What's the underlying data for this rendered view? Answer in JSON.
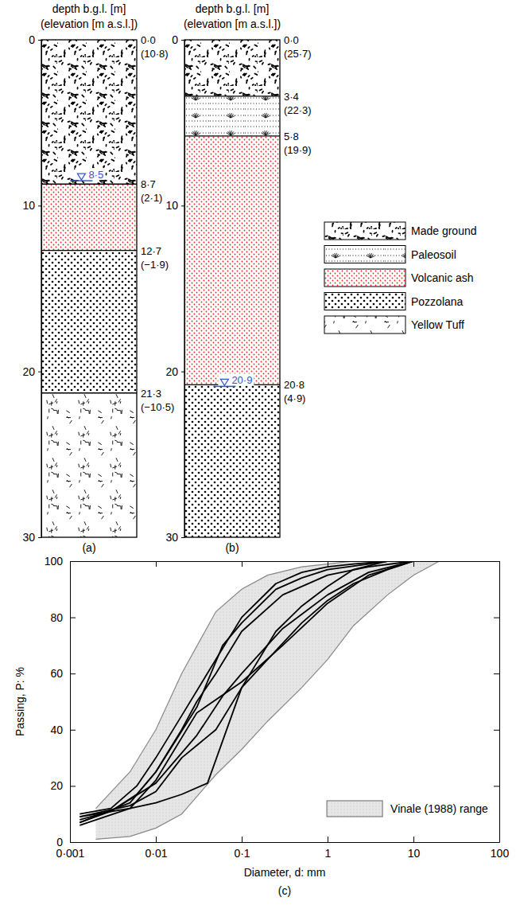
{
  "logs": [
    {
      "label": "(a)",
      "header": [
        "depth b.g.l. [m]",
        "(elevation [m a.s.l.])"
      ],
      "depth_range": [
        0,
        30
      ],
      "depth_ticks": [
        0,
        10,
        20,
        30
      ],
      "layers": [
        {
          "material": "Made ground",
          "top": 0,
          "top_label": "0·0",
          "elevation_label": "(10·8)"
        },
        {
          "material": "Volcanic ash",
          "top": 8.7,
          "top_label": "8·7",
          "elevation_label": "(2·1)"
        },
        {
          "material": "Pozzolana",
          "top": 12.7,
          "top_label": "12·7",
          "elevation_label": "(−1·9)"
        },
        {
          "material": "Yellow Tuff",
          "top": 21.3,
          "top_label": "21·3",
          "elevation_label": "(−10·5)"
        }
      ],
      "water_table": {
        "depth": 8.5,
        "label": "8·5"
      }
    },
    {
      "label": "(b)",
      "header": [
        "depth b.g.l. [m]",
        "(elevation [m a.s.l.])"
      ],
      "depth_range": [
        0,
        30
      ],
      "depth_ticks": [
        0,
        10,
        20,
        30
      ],
      "layers": [
        {
          "material": "Made ground",
          "top": 0,
          "top_label": "0·0",
          "elevation_label": "(25·7)"
        },
        {
          "material": "Paleosoil",
          "top": 3.4,
          "top_label": "3·4",
          "elevation_label": "(22·3)"
        },
        {
          "material": "Volcanic ash",
          "top": 5.8,
          "top_label": "5·8",
          "elevation_label": "(19·9)"
        },
        {
          "material": "Pozzolana",
          "top": 20.8,
          "top_label": "20·8",
          "elevation_label": "(4·9)"
        }
      ],
      "water_table": {
        "depth": 20.9,
        "label": "20·9"
      }
    }
  ],
  "legend": [
    {
      "name": "Made ground",
      "color": "#000000"
    },
    {
      "name": "Paleosoil",
      "color": "#000000"
    },
    {
      "name": "Volcanic ash",
      "color": "#e8262a"
    },
    {
      "name": "Pozzolana",
      "color": "#000000"
    },
    {
      "name": "Yellow Tuff",
      "color": "#000000"
    }
  ],
  "chart_data": {
    "type": "line",
    "label": "(c)",
    "x_label": "Diameter, d: mm",
    "y_label": "Passing, P: %",
    "log": "x",
    "legend": "bottom-right",
    "xlim": [
      0.001,
      100
    ],
    "ylim": [
      0,
      100
    ],
    "xticks": [
      {
        "value": 0.001,
        "label": "0·001"
      },
      {
        "value": 0.01,
        "label": "0·01"
      },
      {
        "value": 0.1,
        "label": "0·1"
      },
      1,
      10,
      100
    ],
    "yticks": [
      0,
      20,
      40,
      60,
      80,
      100
    ],
    "band": {
      "name": "Vinale (1988) range",
      "color": "#e6e6e6",
      "x": [
        0.002,
        0.005,
        0.01,
        0.02,
        0.05,
        0.1,
        0.2,
        0.5,
        1,
        2,
        5,
        10,
        20
      ],
      "upper": [
        12,
        25,
        40,
        60,
        82,
        90,
        95,
        98,
        99,
        100,
        100,
        100,
        100
      ],
      "lower": [
        1,
        2,
        5,
        10,
        24,
        33,
        43,
        55,
        65,
        77,
        88,
        95,
        100
      ]
    },
    "series": [
      {
        "color": "#000000",
        "x": [
          0.0013,
          0.003,
          0.006,
          0.01,
          0.02,
          0.05,
          0.1,
          0.25,
          0.5,
          1,
          2,
          5
        ],
        "values": [
          10,
          12,
          20,
          30,
          45,
          65,
          80,
          92,
          96,
          98,
          99,
          100
        ]
      },
      {
        "color": "#000000",
        "x": [
          0.0013,
          0.003,
          0.006,
          0.01,
          0.03,
          0.06,
          0.1,
          0.25,
          0.5,
          1,
          3,
          5
        ],
        "values": [
          8,
          11,
          17,
          25,
          48,
          70,
          78,
          90,
          94,
          97,
          99,
          100
        ]
      },
      {
        "color": "#000000",
        "x": [
          0.0013,
          0.005,
          0.01,
          0.02,
          0.03,
          0.05,
          0.1,
          0.3,
          1,
          3,
          10
        ],
        "values": [
          7,
          14,
          25,
          40,
          50,
          60,
          75,
          88,
          95,
          98,
          100
        ]
      },
      {
        "color": "#000000",
        "x": [
          0.0013,
          0.005,
          0.01,
          0.02,
          0.04,
          0.1,
          0.25,
          0.5,
          1,
          2,
          5
        ],
        "values": [
          9,
          12,
          14,
          17,
          21,
          55,
          75,
          84,
          91,
          97,
          100
        ]
      },
      {
        "color": "#000000",
        "x": [
          0.0013,
          0.005,
          0.01,
          0.03,
          0.1,
          0.3,
          1,
          3,
          10
        ],
        "values": [
          6,
          12,
          22,
          46,
          57,
          70,
          85,
          95,
          100
        ]
      },
      {
        "color": "#000000",
        "x": [
          0.0013,
          0.005,
          0.01,
          0.02,
          0.05,
          0.1,
          0.2,
          0.5,
          1,
          2,
          5,
          10
        ],
        "values": [
          9,
          13,
          18,
          30,
          40,
          55,
          65,
          78,
          86,
          92,
          97,
          100
        ]
      },
      {
        "color": "#000000",
        "x": [
          0.0013,
          0.003,
          0.01,
          0.03,
          0.06,
          0.1,
          0.3,
          1,
          3,
          10
        ],
        "values": [
          7,
          11,
          21,
          38,
          52,
          60,
          76,
          88,
          96,
          100
        ]
      }
    ]
  }
}
